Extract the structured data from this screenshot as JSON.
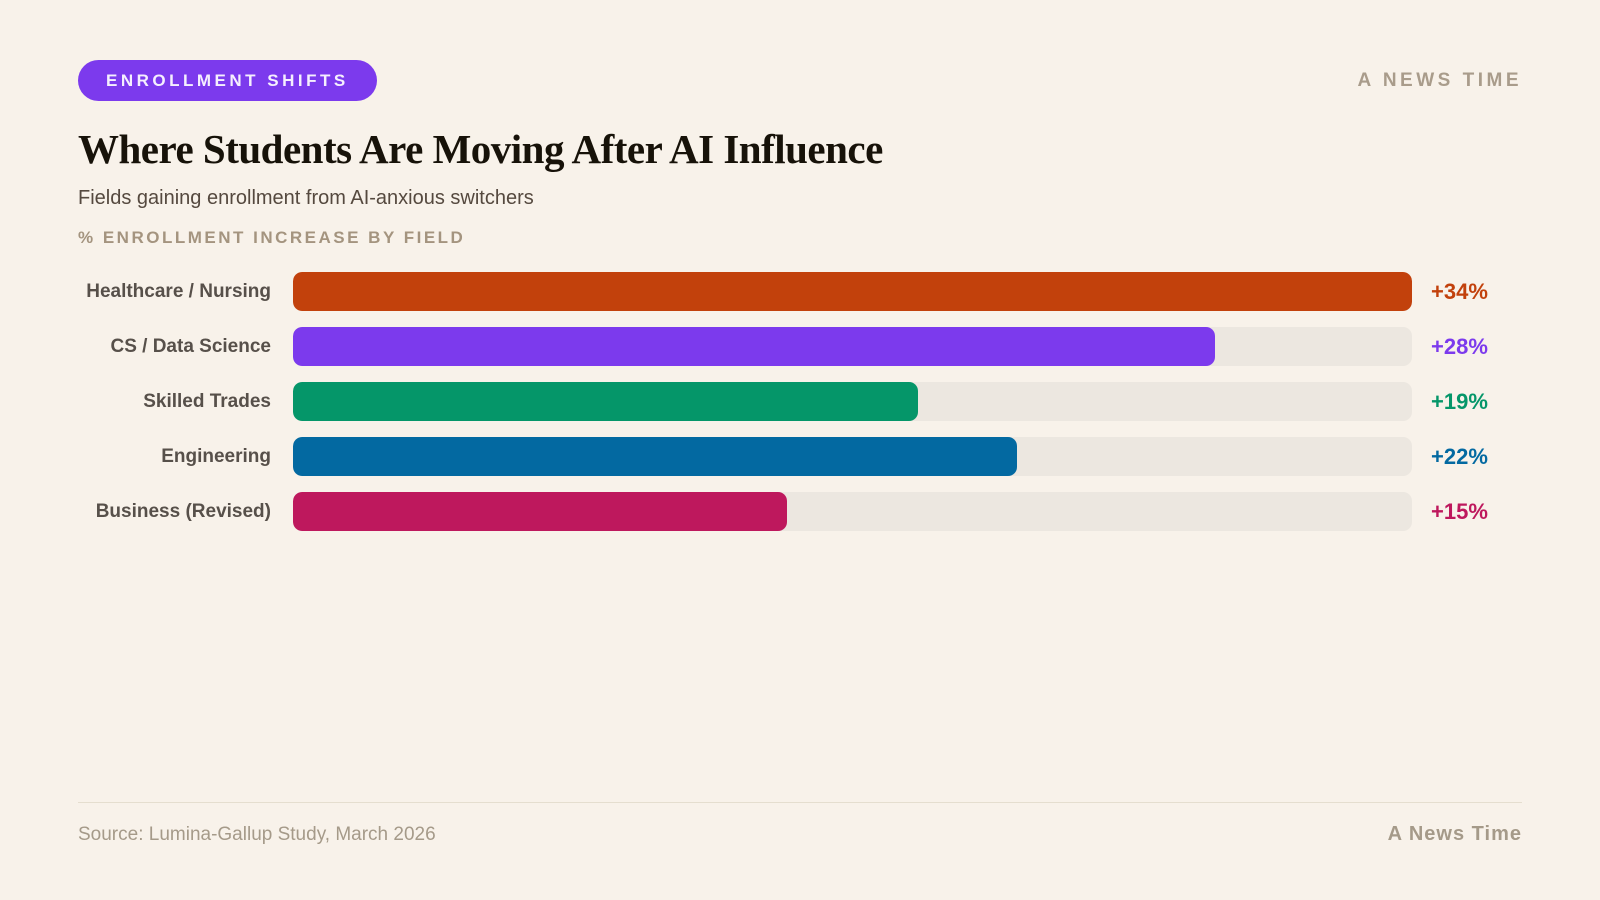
{
  "page": {
    "background_color": "#F8F2EA"
  },
  "header": {
    "badge_label": "ENROLLMENT SHIFTS",
    "badge_color": "#7C3AED",
    "brand": "A NEWS TIME",
    "title": "Where Students Are Moving After AI Influence",
    "subtitle": "Fields gaining enrollment from AI-anxious switchers",
    "kicker": "% ENROLLMENT INCREASE BY FIELD"
  },
  "chart_data": {
    "type": "bar",
    "orientation": "horizontal",
    "title": "Where Students Are Moving After AI Influence",
    "subtitle": "Fields gaining enrollment from AI-anxious switchers",
    "axis_label": "% ENROLLMENT INCREASE BY FIELD",
    "categories": [
      "Healthcare / Nursing",
      "CS / Data Science",
      "Skilled Trades",
      "Engineering",
      "Business (Revised)"
    ],
    "values": [
      34,
      28,
      19,
      22,
      15
    ],
    "value_labels": [
      "+34%",
      "+28%",
      "+19%",
      "+22%",
      "+15%"
    ],
    "bar_colors": [
      "#C2410C",
      "#7C3AED",
      "#059669",
      "#0369A1",
      "#BE185D"
    ],
    "track_color": "#ECE7E0",
    "xlim": [
      0,
      34
    ],
    "grid": false,
    "legend": false
  },
  "footer": {
    "source": "Source: Lumina-Gallup Study, March 2026",
    "brand": "A News Time"
  }
}
